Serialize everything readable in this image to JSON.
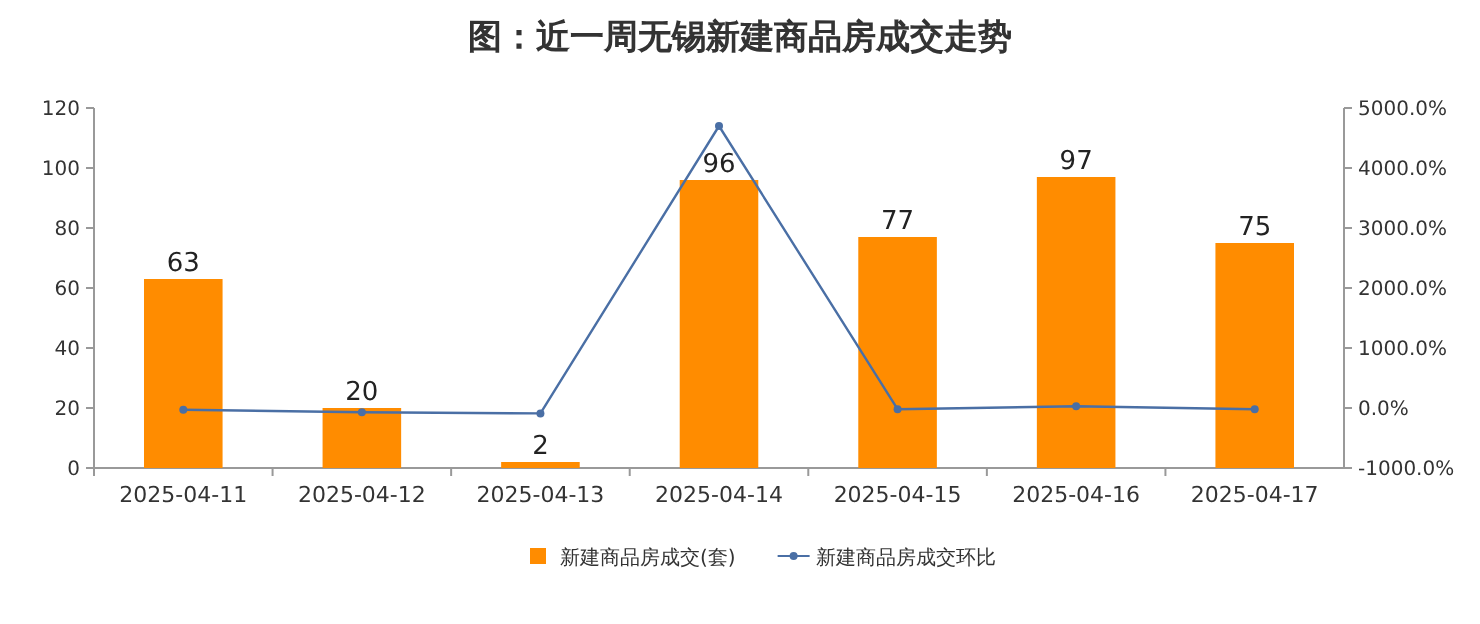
{
  "chart_data": {
    "type": "bar",
    "title": "图：近一周无锡新建商品房成交走势",
    "categories": [
      "2025-04-11",
      "2025-04-12",
      "2025-04-13",
      "2025-04-14",
      "2025-04-15",
      "2025-04-16",
      "2025-04-17"
    ],
    "series": [
      {
        "name": "新建商品房成交(套)",
        "color": "#ff8c00",
        "values": [
          63,
          20,
          2,
          96,
          77,
          97,
          75
        ],
        "value_labels": [
          "63",
          "20",
          "2",
          "96",
          "77",
          "97",
          "75"
        ]
      },
      {
        "name": "新建商品房成交环比",
        "type": "line",
        "axis": "y2",
        "color": "#4a6fa5",
        "marker": "circle",
        "values": [
          -30,
          -70,
          -90,
          4700,
          -20,
          30,
          -20
        ]
      }
    ],
    "ylim": [
      0,
      120
    ],
    "yticks": [
      0,
      20,
      40,
      60,
      80,
      100,
      120
    ],
    "y2lim": [
      -1000,
      5000
    ],
    "y2ticks": [
      {
        "value": -1000,
        "label": "-1000.0%"
      },
      {
        "value": 0,
        "label": "0.0%"
      },
      {
        "value": 1000,
        "label": "1000.0%"
      },
      {
        "value": 2000,
        "label": "2000.0%"
      },
      {
        "value": 3000,
        "label": "3000.0%"
      },
      {
        "value": 4000,
        "label": "4000.0%"
      },
      {
        "value": 5000,
        "label": "5000.0%"
      }
    ],
    "legend": "bottom",
    "grid": false
  }
}
